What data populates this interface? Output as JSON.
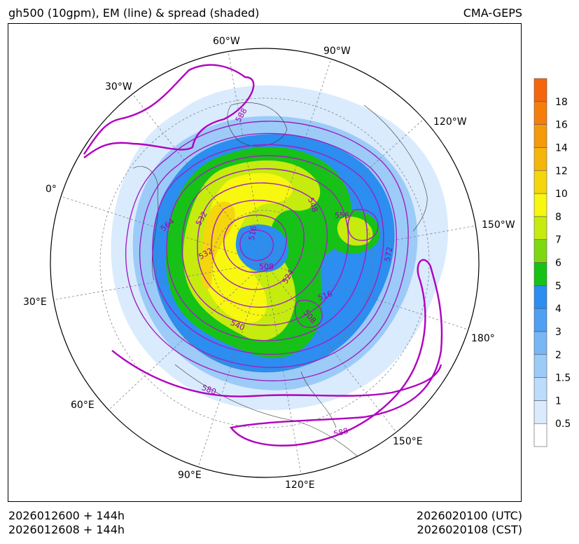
{
  "header": {
    "title": "gh500 (10gpm), EM (line) & spread (shaded)",
    "model": "CMA-GEPS"
  },
  "longitude_labels": [
    "60°W",
    "90°W",
    "30°W",
    "120°W",
    "0°",
    "150°W",
    "30°E",
    "180°",
    "60°E",
    "150°E",
    "90°E",
    "120°E"
  ],
  "contour_labels": [
    "588",
    "564",
    "532",
    "516",
    "548",
    "556",
    "532",
    "508",
    "524",
    "572",
    "516",
    "508",
    "540",
    "580",
    "588"
  ],
  "colorbar": {
    "levels": [
      "0.5",
      "1",
      "1.5",
      "2",
      "3",
      "4",
      "5",
      "6",
      "7",
      "8",
      "10",
      "12",
      "14",
      "16",
      "18"
    ],
    "colors": [
      "#ffffff",
      "#d9ebfd",
      "#bcdcfb",
      "#9ccbf8",
      "#78b6f6",
      "#4f9ff4",
      "#2b8ef0",
      "#16c216",
      "#7ed80f",
      "#c6eb0e",
      "#f7f70f",
      "#f5d60d",
      "#f5b60b",
      "#f59a0b",
      "#f57e0b",
      "#f5650c"
    ]
  },
  "footer": {
    "init_utc": "2026012600 + 144h",
    "init_cst": "2026012608 + 144h",
    "valid_utc": "2026020100 (UTC)",
    "valid_cst": "2026020108 (CST)"
  }
}
